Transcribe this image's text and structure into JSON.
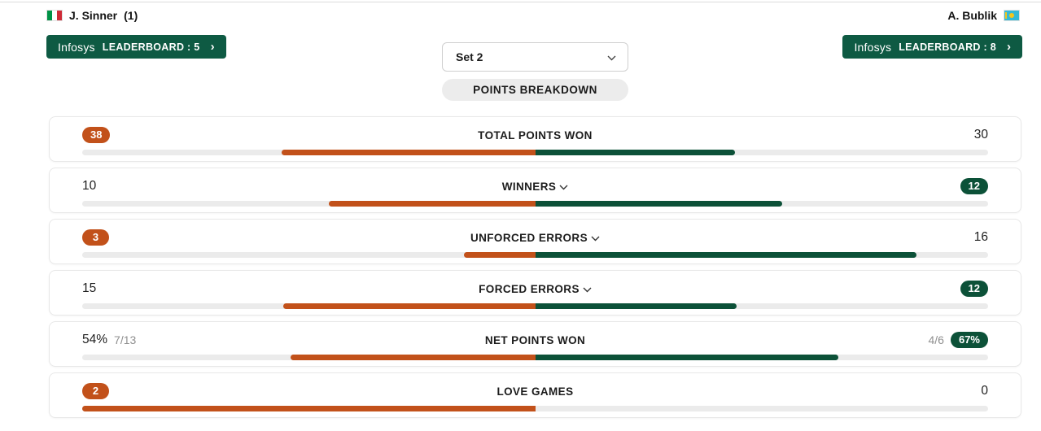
{
  "header": {
    "left_player": {
      "name": "J. Sinner",
      "seed": "(1)",
      "flag": "Italy"
    },
    "right_player": {
      "name": "A. Bublik",
      "flag": "Kazakhstan"
    },
    "left_leaderboard": {
      "brand": "Infosys",
      "label": "LEADERBOARD : 5",
      "chevron": "›"
    },
    "right_leaderboard": {
      "brand": "Infosys",
      "label": "LEADERBOARD : 8",
      "chevron": "›"
    }
  },
  "controls": {
    "set_selector": {
      "value": "Set 2"
    },
    "section_pill": "POINTS BREAKDOWN"
  },
  "colors": {
    "player_left_accent": "#C2511A",
    "player_right_accent": "#0C5138",
    "leaderboard_button": "#0E5A43",
    "bar_track": "#EBEBEB"
  },
  "stats": {
    "rows": [
      {
        "label": "TOTAL POINTS WON",
        "expandable": false,
        "left": {
          "value": "38",
          "badge": true,
          "frac": 0.559
        },
        "right": {
          "value": "30",
          "badge": false,
          "frac": 0.441
        }
      },
      {
        "label": "WINNERS",
        "expandable": true,
        "left": {
          "value": "10",
          "badge": false,
          "frac": 0.455
        },
        "right": {
          "value": "12",
          "badge": true,
          "frac": 0.545
        }
      },
      {
        "label": "UNFORCED ERRORS",
        "expandable": true,
        "left": {
          "value": "3",
          "badge": true,
          "frac": 0.158
        },
        "right": {
          "value": "16",
          "badge": false,
          "frac": 0.842
        }
      },
      {
        "label": "FORCED ERRORS",
        "expandable": true,
        "left": {
          "value": "15",
          "badge": false,
          "frac": 0.556
        },
        "right": {
          "value": "12",
          "badge": true,
          "frac": 0.444
        }
      },
      {
        "label": "NET POINTS WON",
        "expandable": false,
        "left": {
          "value": "54%",
          "detail": "7/13",
          "badge": false,
          "frac": 0.54
        },
        "right": {
          "value": "67%",
          "detail": "4/6",
          "badge": true,
          "frac": 0.67
        }
      },
      {
        "label": "LOVE GAMES",
        "expandable": false,
        "left": {
          "value": "2",
          "badge": true,
          "frac": 1.0
        },
        "right": {
          "value": "0",
          "badge": false,
          "frac": 0.0
        }
      }
    ]
  }
}
